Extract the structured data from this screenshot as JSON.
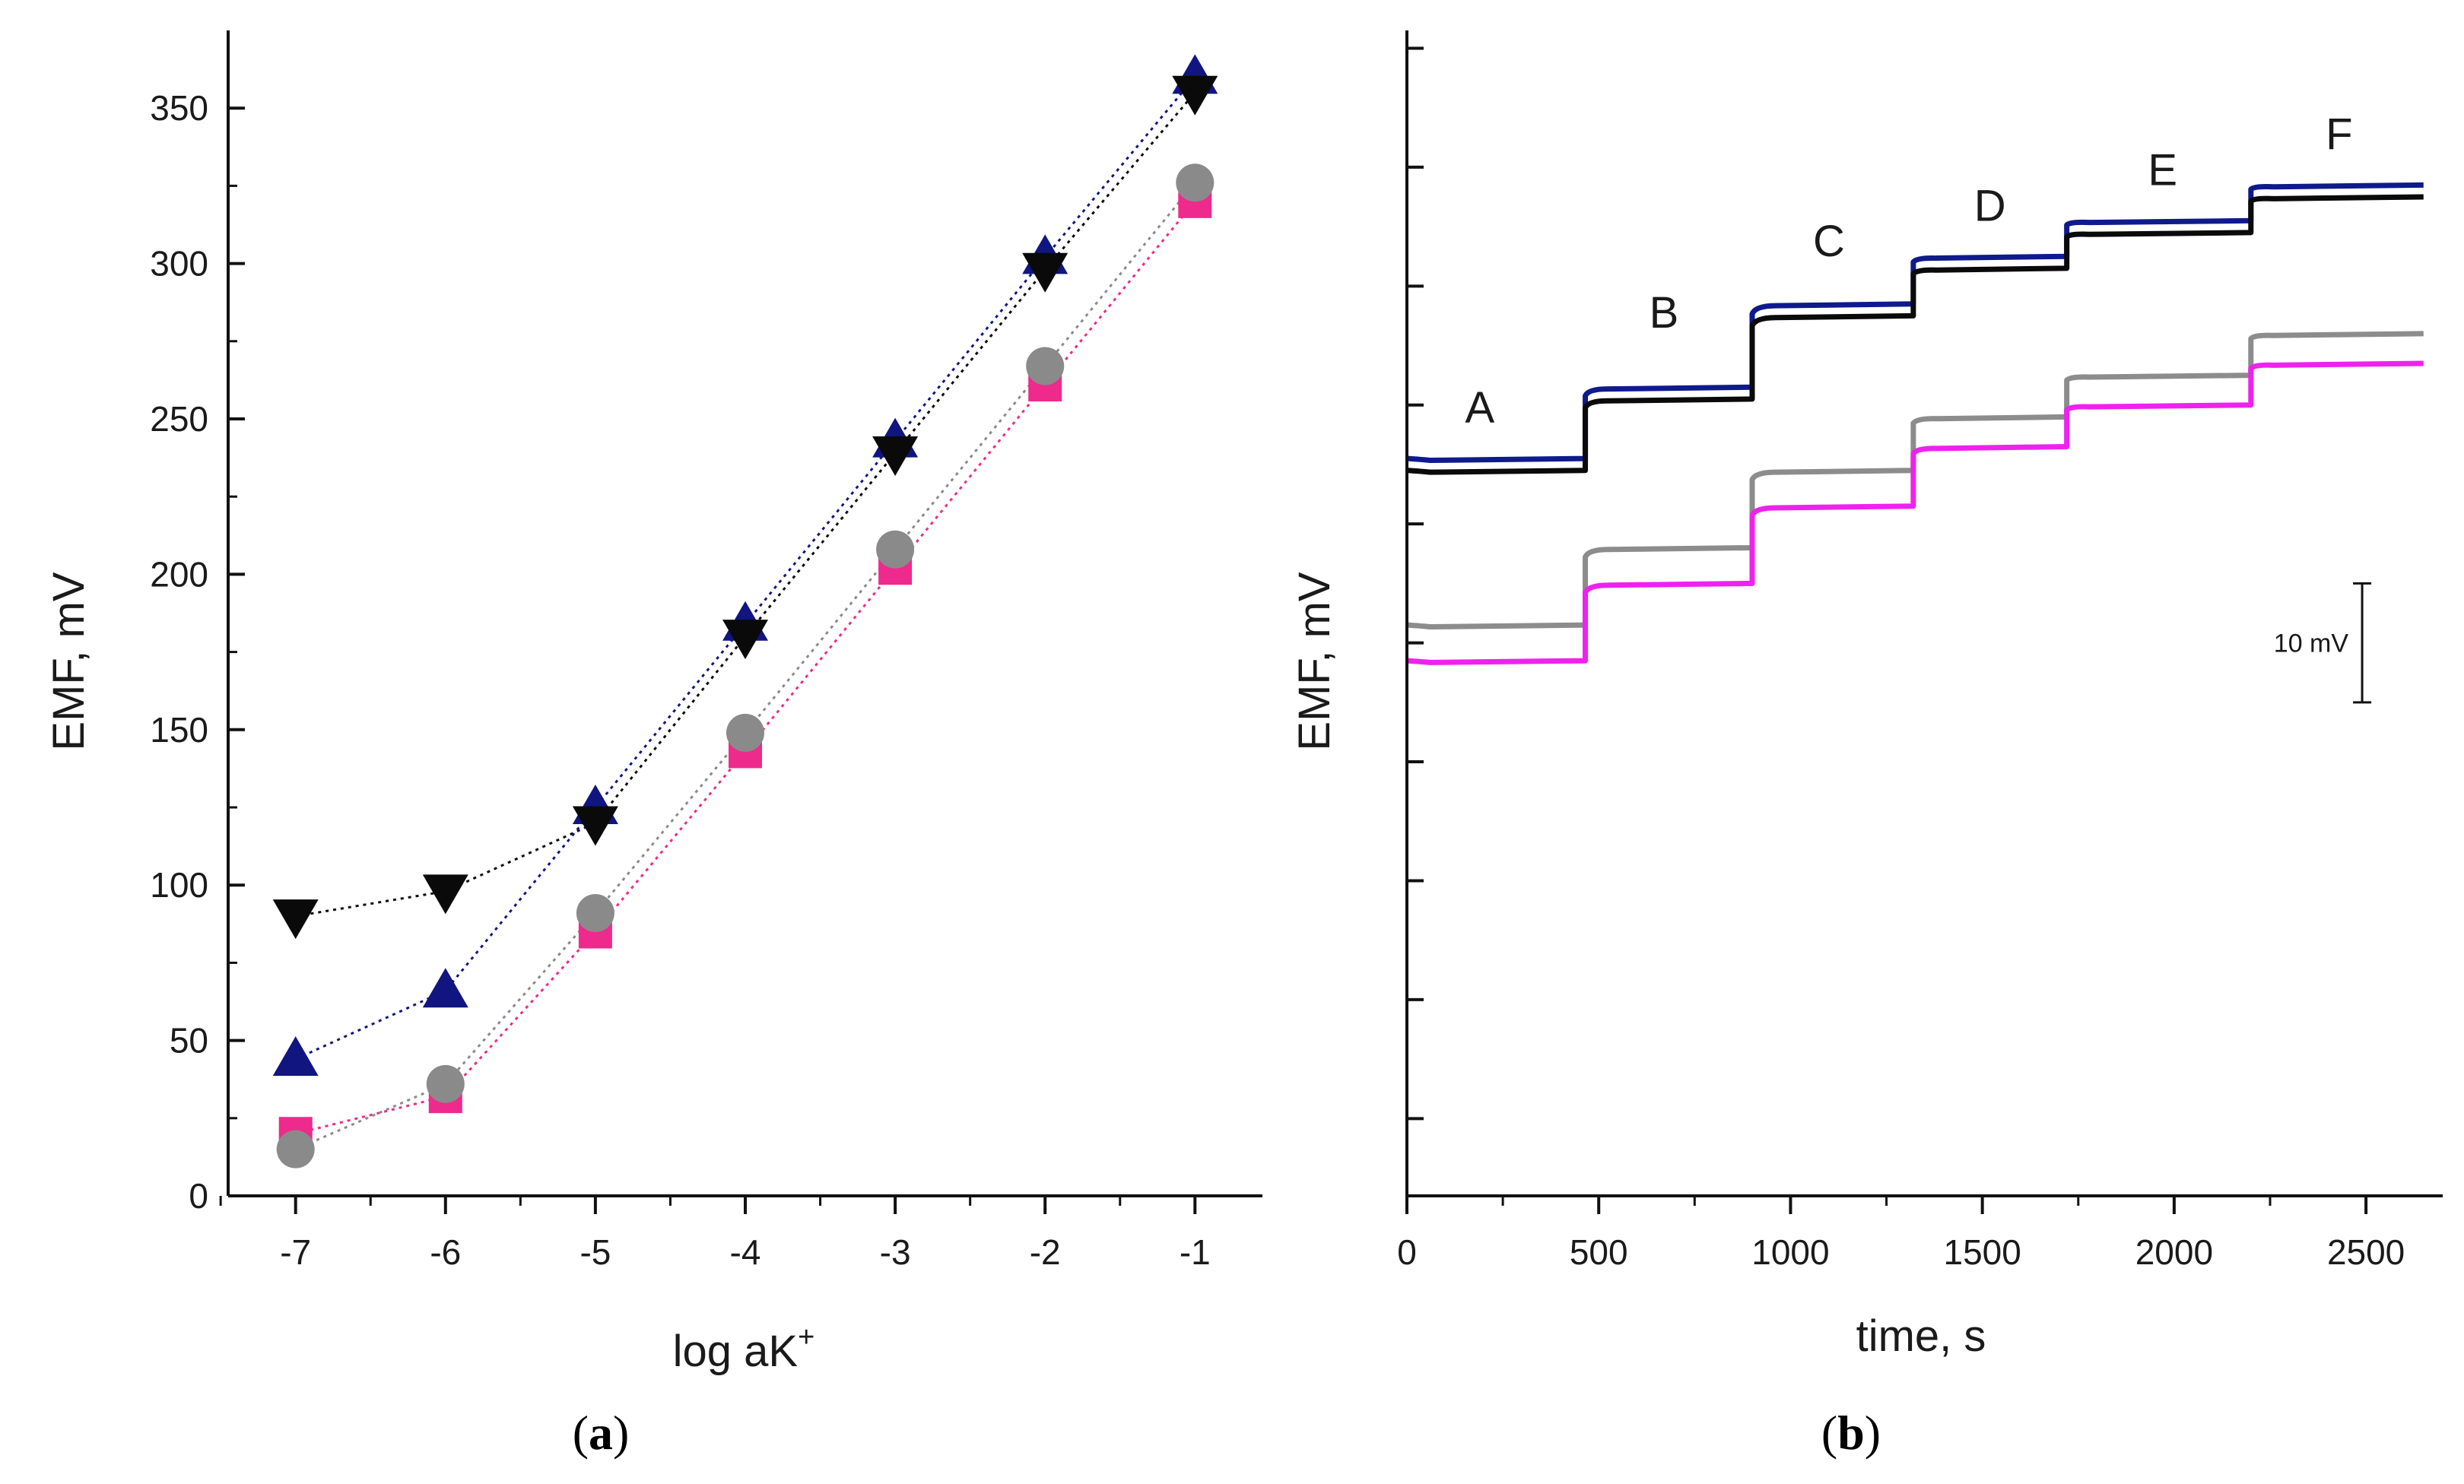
{
  "chart_data": [
    {
      "id": "a",
      "type": "scatter",
      "caption": {
        "open": "(",
        "letter": "a",
        "close": ")"
      },
      "xlabel": {
        "main": "log aK",
        "sup": "+"
      },
      "ylabel": "EMF, mV",
      "xlim": [
        -7.45,
        -0.55
      ],
      "ylim": [
        0,
        375
      ],
      "xticks": [
        -7,
        -6,
        -5,
        -4,
        -3,
        -2,
        -1
      ],
      "yticks": [
        0,
        50,
        100,
        150,
        200,
        250,
        300,
        350
      ],
      "series": [
        {
          "name": "down-triangle",
          "marker": "triangle-down",
          "color": "#0a0a0a",
          "x": [
            -7,
            -6,
            -5,
            -4,
            -3,
            -2,
            -1
          ],
          "y": [
            90,
            98,
            120,
            180,
            239,
            298,
            355
          ]
        },
        {
          "name": "up-triangle",
          "marker": "triangle-up",
          "color": "#101580",
          "x": [
            -7,
            -6,
            -5,
            -4,
            -3,
            -2,
            -1
          ],
          "y": [
            44,
            66,
            125,
            184,
            243,
            302,
            360
          ]
        },
        {
          "name": "square",
          "marker": "square",
          "color": "#ee2a8c",
          "x": [
            -7,
            -6,
            -5,
            -4,
            -3,
            -2,
            -1
          ],
          "y": [
            20,
            32,
            85,
            143,
            202,
            261,
            320
          ]
        },
        {
          "name": "circle",
          "marker": "circle",
          "color": "#8a8a8a",
          "x": [
            -7,
            -6,
            -5,
            -4,
            -3,
            -2,
            -1
          ],
          "y": [
            15,
            36,
            91,
            149,
            208,
            267,
            326
          ]
        }
      ]
    },
    {
      "id": "b",
      "type": "line",
      "caption": {
        "open": "(",
        "letter": "b",
        "close": ")"
      },
      "xlabel": "time, s",
      "ylabel": "EMF, mV",
      "xlim": [
        0,
        2700
      ],
      "ylim": [
        -1.5,
        96.5
      ],
      "xticks": [
        0,
        500,
        1000,
        1500,
        2000,
        2500
      ],
      "yticks_unlabeled": [
        5,
        15,
        25,
        35,
        45,
        55,
        65,
        75,
        85,
        95
      ],
      "step_times": [
        465,
        900,
        1320,
        1720,
        2200
      ],
      "end_time": 2650,
      "series": [
        {
          "name": "blue",
          "color": "#0f1a8c",
          "levels": [
            60.5,
            66.5,
            73.5,
            77.5,
            80.5,
            83.5
          ]
        },
        {
          "name": "black",
          "color": "#0a0a0a",
          "levels": [
            59.5,
            65.5,
            72.5,
            76.5,
            79.5,
            82.5
          ]
        },
        {
          "name": "gray",
          "color": "#8c8c8c",
          "levels": [
            46.5,
            53.0,
            59.5,
            64.0,
            67.5,
            71.0
          ]
        },
        {
          "name": "magenta",
          "color": "#ee22ee",
          "levels": [
            43.5,
            50.0,
            56.5,
            61.5,
            65.0,
            68.5
          ]
        }
      ],
      "step_labels": [
        {
          "text": "A",
          "x": 190,
          "y": 63.5
        },
        {
          "text": "B",
          "x": 670,
          "y": 71.5
        },
        {
          "text": "C",
          "x": 1100,
          "y": 77.5
        },
        {
          "text": "D",
          "x": 1520,
          "y": 80.5
        },
        {
          "text": "E",
          "x": 1970,
          "y": 83.5
        },
        {
          "text": "F",
          "x": 2430,
          "y": 86.5
        }
      ],
      "scale_bar": {
        "label": "10 mV",
        "x": 2490,
        "y_from": 40,
        "y_to": 50
      }
    }
  ]
}
